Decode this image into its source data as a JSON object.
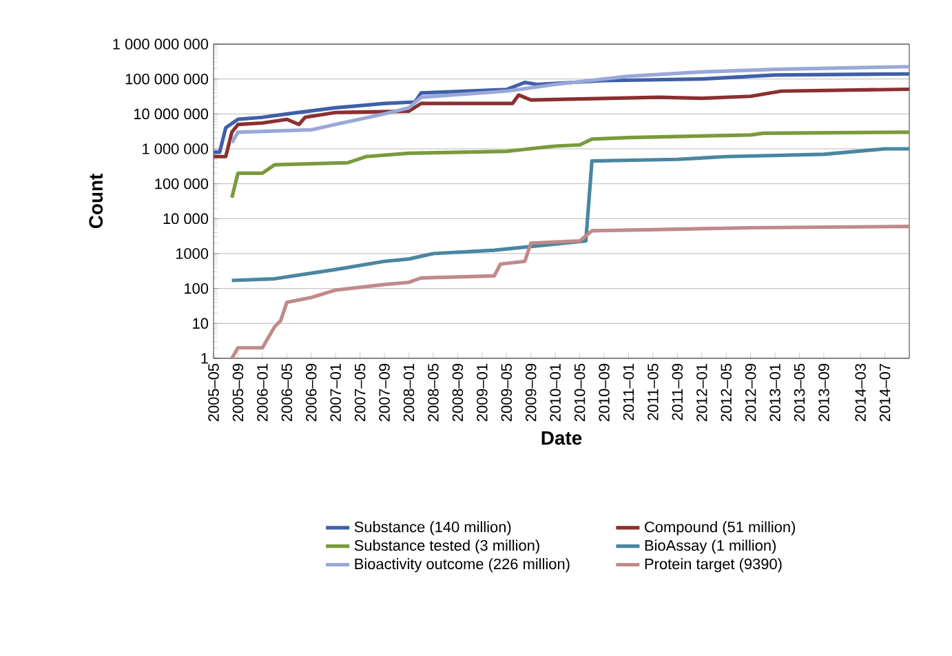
{
  "chart_data": {
    "type": "line",
    "xlabel": "Date",
    "ylabel": "Count",
    "log": "y",
    "grid": "y",
    "legend": "bottom",
    "xlim": [
      "2005-05",
      "2014-11"
    ],
    "ylim": [
      1,
      1000000000
    ],
    "xticks": [
      {
        "value": "2005-05",
        "label": "2005–05"
      },
      {
        "value": "2005-09",
        "label": "2005–09"
      },
      {
        "value": "2006-01",
        "label": "2006–01"
      },
      {
        "value": "2006-05",
        "label": "2006–05"
      },
      {
        "value": "2006-09",
        "label": "2006–09"
      },
      {
        "value": "2007-01",
        "label": "2007–01"
      },
      {
        "value": "2007-05",
        "label": "2007–05"
      },
      {
        "value": "2007-09",
        "label": "2007–09"
      },
      {
        "value": "2008-01",
        "label": "2008–01"
      },
      {
        "value": "2008-05",
        "label": "2008–05"
      },
      {
        "value": "2008-09",
        "label": "2008–09"
      },
      {
        "value": "2009-01",
        "label": "2009–01"
      },
      {
        "value": "2009-05",
        "label": "2009–05"
      },
      {
        "value": "2009-09",
        "label": "2009–09"
      },
      {
        "value": "2010-01",
        "label": "2010–01"
      },
      {
        "value": "2010-05",
        "label": "2010–05"
      },
      {
        "value": "2010-09",
        "label": "2010–09"
      },
      {
        "value": "2011-01",
        "label": "2011–01"
      },
      {
        "value": "2011-05",
        "label": "2011–05"
      },
      {
        "value": "2011-09",
        "label": "2011–09"
      },
      {
        "value": "2012-01",
        "label": "2012–01"
      },
      {
        "value": "2012-05",
        "label": "2012–05"
      },
      {
        "value": "2012-09",
        "label": "2012–09"
      },
      {
        "value": "2013-01",
        "label": "2013–01"
      },
      {
        "value": "2013-05",
        "label": "2013–05"
      },
      {
        "value": "2013-09",
        "label": "2013–09"
      },
      {
        "value": "2014-03",
        "label": "2014–03"
      },
      {
        "value": "2014-07",
        "label": "2014–07"
      }
    ],
    "yticks": [
      1,
      10,
      100,
      1000,
      {
        "value": 10000,
        "label": "10 000"
      },
      {
        "value": 100000,
        "label": "100 000"
      },
      {
        "value": 1000000,
        "label": "1 000 000"
      },
      {
        "value": 10000000,
        "label": "10 000 000"
      },
      {
        "value": 100000000,
        "label": "100 000 000"
      },
      {
        "value": 1000000000,
        "label": "1 000 000 000"
      }
    ],
    "series": [
      {
        "name": "Substance (140 million)",
        "color": "#3f5fa8",
        "x": [
          "2005-05",
          "2005-06",
          "2005-07",
          "2005-09",
          "2006-01",
          "2006-05",
          "2007-01",
          "2007-09",
          "2008-02",
          "2008-03",
          "2009-05",
          "2009-08",
          "2009-10",
          "2010-09",
          "2012-01",
          "2013-01",
          "2014-11"
        ],
        "values": [
          800000,
          800000,
          4000000,
          7000000,
          8000000,
          10000000,
          15000000,
          20000000,
          22000000,
          40000000,
          50000000,
          80000000,
          70000000,
          90000000,
          100000000,
          130000000,
          140000000
        ]
      },
      {
        "name": "Compound (51 million)",
        "color": "#8b2f2f",
        "x": [
          "2005-05",
          "2005-07",
          "2005-08",
          "2005-09",
          "2006-01",
          "2006-05",
          "2006-07",
          "2006-08",
          "2007-01",
          "2008-01",
          "2008-03",
          "2009-06",
          "2009-07",
          "2009-09",
          "2011-06",
          "2012-01",
          "2012-09",
          "2013-02",
          "2014-11"
        ],
        "values": [
          600000,
          600000,
          3000000,
          5000000,
          5500000,
          7000000,
          5000000,
          8000000,
          11000000,
          12000000,
          20000000,
          20000000,
          35000000,
          25000000,
          30000000,
          28000000,
          32000000,
          45000000,
          51000000
        ]
      },
      {
        "name": "Substance tested (3 million)",
        "color": "#7a9a3a",
        "x": [
          "2005-08",
          "2005-09",
          "2006-01",
          "2006-03",
          "2007-03",
          "2007-06",
          "2008-01",
          "2009-05",
          "2010-01",
          "2010-05",
          "2010-07",
          "2011-01",
          "2012-09",
          "2012-11",
          "2014-11"
        ],
        "values": [
          40000,
          200000,
          200000,
          350000,
          400000,
          600000,
          750000,
          850000,
          1200000,
          1300000,
          1900000,
          2100000,
          2500000,
          2800000,
          3000000
        ]
      },
      {
        "name": "BioAssay (1 million)",
        "color": "#4a86a0",
        "x": [
          "2005-08",
          "2006-03",
          "2007-01",
          "2007-09",
          "2008-01",
          "2008-05",
          "2009-03",
          "2010-06",
          "2010-07",
          "2011-09",
          "2012-05",
          "2013-09",
          "2014-07",
          "2014-11"
        ],
        "values": [
          170,
          190,
          350,
          600,
          700,
          1000,
          1250,
          2300,
          450000,
          500000,
          600000,
          700000,
          1000000,
          1000000
        ]
      },
      {
        "name": "Bioactivity outcome (226 million)",
        "color": "#9aa8d8",
        "x": [
          "2005-08",
          "2005-09",
          "2006-09",
          "2007-01",
          "2007-09",
          "2008-01",
          "2008-03",
          "2009-05",
          "2010-01",
          "2011-01",
          "2012-01",
          "2013-01",
          "2014-11"
        ],
        "values": [
          1500000,
          3000000,
          3500000,
          5000000,
          10000000,
          15000000,
          30000000,
          45000000,
          70000000,
          120000000,
          160000000,
          190000000,
          226000000
        ]
      },
      {
        "name": "Protein target (9390)",
        "color": "#c08a8a",
        "x": [
          "2005-08",
          "2005-09",
          "2006-01",
          "2006-03",
          "2006-04",
          "2006-05",
          "2006-09",
          "2007-01",
          "2007-09",
          "2008-01",
          "2008-03",
          "2009-03",
          "2009-04",
          "2009-08",
          "2009-09",
          "2010-05",
          "2010-07",
          "2011-09",
          "2012-09",
          "2014-11"
        ],
        "values": [
          1,
          2,
          2,
          8,
          12,
          40,
          55,
          90,
          130,
          150,
          200,
          230,
          500,
          600,
          2000,
          2300,
          4500,
          5000,
          5500,
          6000
        ]
      }
    ]
  }
}
